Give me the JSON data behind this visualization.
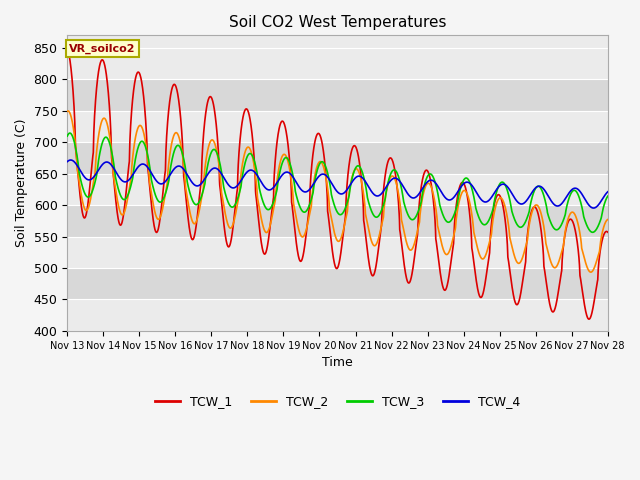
{
  "title": "Soil CO2 West Temperatures",
  "ylabel": "Soil Temperature (C)",
  "xlabel": "Time",
  "annotation": "VR_soilco2",
  "ylim": [
    400,
    870
  ],
  "yticks": [
    400,
    450,
    500,
    550,
    600,
    650,
    700,
    750,
    800,
    850
  ],
  "series": {
    "TCW_1": {
      "color": "#dd0000",
      "label": "TCW_1"
    },
    "TCW_2": {
      "color": "#ff8800",
      "label": "TCW_2"
    },
    "TCW_3": {
      "color": "#00cc00",
      "label": "TCW_3"
    },
    "TCW_4": {
      "color": "#0000dd",
      "label": "TCW_4"
    }
  },
  "bg_light": "#ebebeb",
  "bg_dark": "#d8d8d8",
  "grid_color": "#ffffff",
  "fig_bg": "#f5f5f5"
}
